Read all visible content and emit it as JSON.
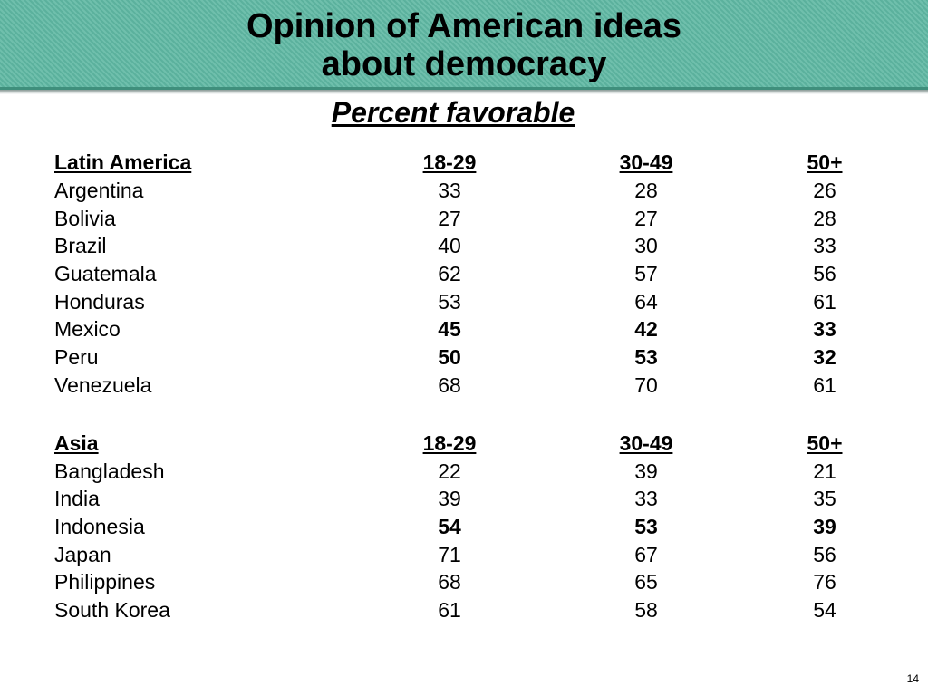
{
  "title": {
    "line1": "Opinion of American ideas",
    "line2": "about democracy"
  },
  "subtitle": "Percent favorable",
  "sections": [
    {
      "header": [
        "Latin America",
        "18-29",
        "30-49",
        "50+"
      ],
      "rows": [
        {
          "country": "Argentina",
          "v": [
            "33",
            "28",
            "26"
          ]
        },
        {
          "country": "Bolivia",
          "v": [
            "27",
            "27",
            "28"
          ]
        },
        {
          "country": "Brazil",
          "v": [
            "40",
            "30",
            "33"
          ]
        },
        {
          "country": "Guatemala",
          "v": [
            "62",
            "57",
            "56"
          ]
        },
        {
          "country": "Honduras",
          "v": [
            "53",
            "64",
            "61"
          ]
        },
        {
          "country": "Mexico",
          "v": [
            "45",
            "42",
            "33"
          ],
          "bold": true
        },
        {
          "country": "Peru",
          "v": [
            "50",
            "53",
            "32"
          ],
          "bold": true
        },
        {
          "country": "Venezuela",
          "v": [
            "68",
            "70",
            "61"
          ]
        }
      ]
    },
    {
      "header": [
        "Asia",
        "18-29",
        "30-49",
        "50+"
      ],
      "rows": [
        {
          "country": "Bangladesh",
          "v": [
            "22",
            "39",
            "21"
          ]
        },
        {
          "country": "India",
          "v": [
            "39",
            "33",
            "35"
          ]
        },
        {
          "country": "Indonesia",
          "v": [
            "54",
            "53",
            "39"
          ],
          "bold": true
        },
        {
          "country": "Japan",
          "v": [
            "71",
            "67",
            "56"
          ]
        },
        {
          "country": "Philippines",
          "v": [
            "68",
            "65",
            "76"
          ]
        },
        {
          "country": "South Korea",
          "v": [
            "61",
            "58",
            "54"
          ]
        }
      ]
    }
  ],
  "page_number": "14",
  "colors": {
    "header_band": "#5fb8a3"
  }
}
